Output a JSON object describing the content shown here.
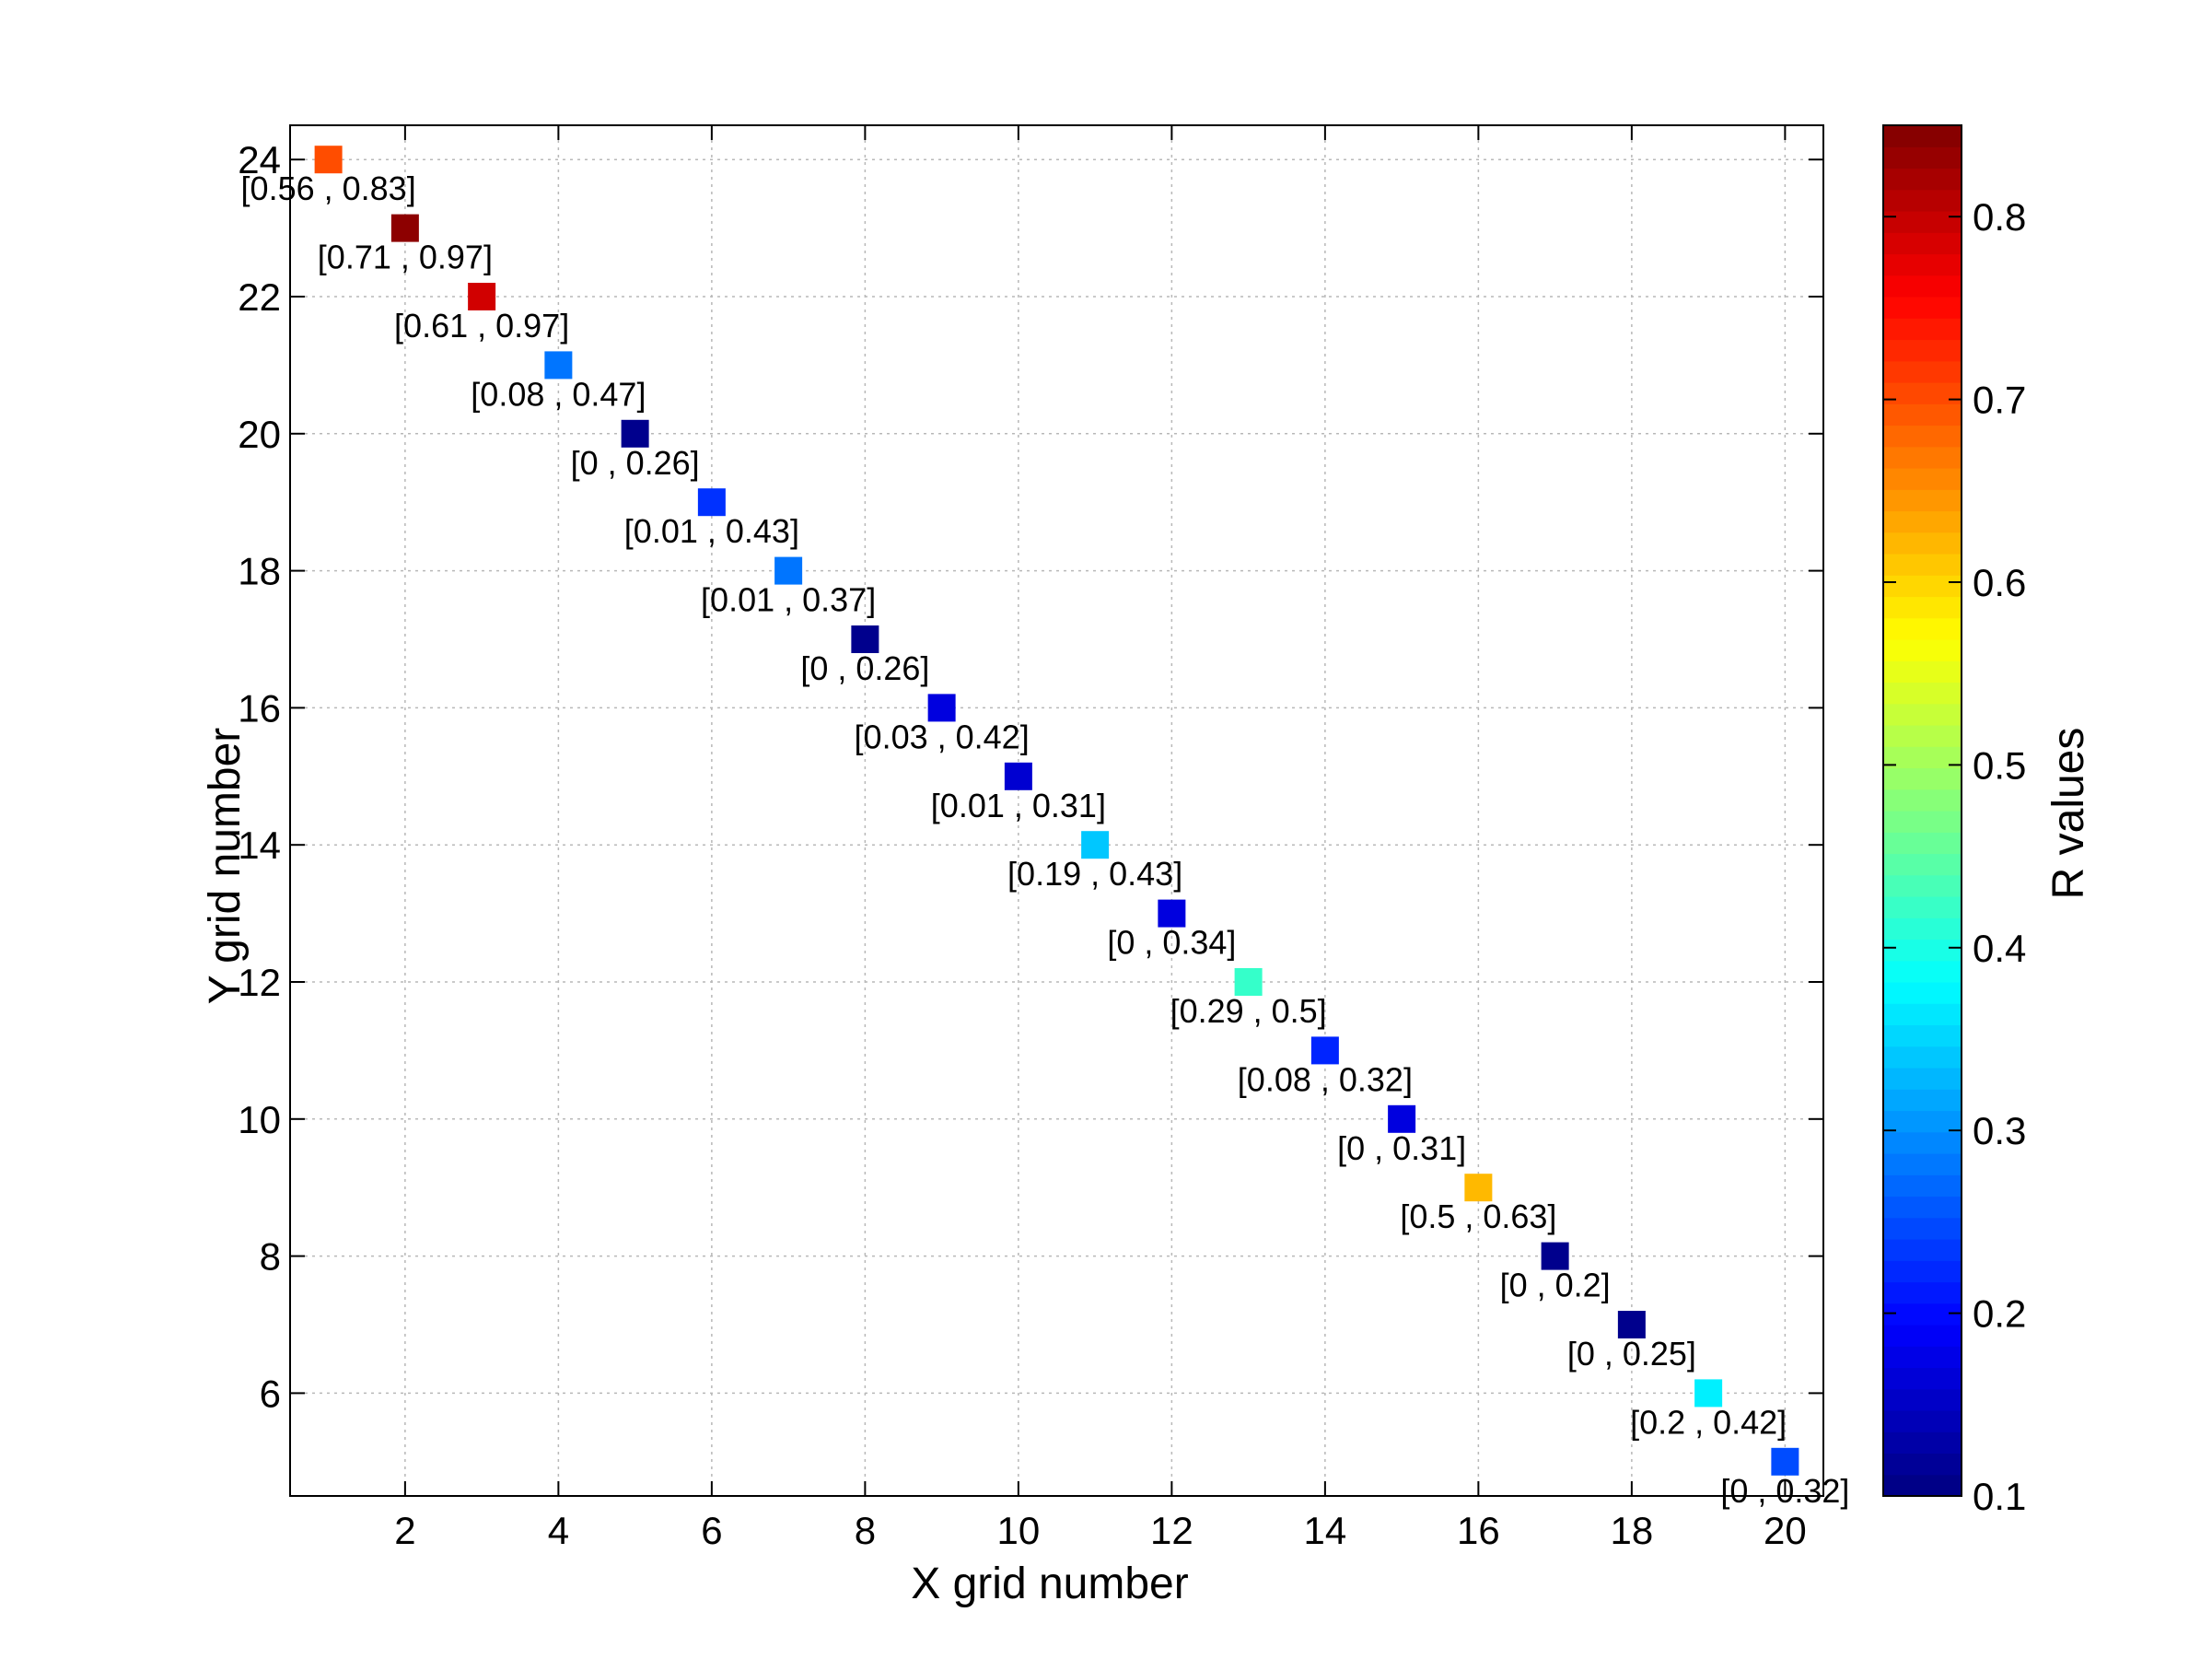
{
  "chart_data": {
    "type": "scatter",
    "xlabel": "X grid number",
    "ylabel": "Y grid number",
    "colorbar_label": "R values",
    "xlim": [
      0.5,
      20.5
    ],
    "ylim": [
      4.5,
      24.5
    ],
    "xticks": [
      2,
      4,
      6,
      8,
      10,
      12,
      14,
      16,
      18,
      20
    ],
    "yticks": [
      6,
      8,
      10,
      12,
      14,
      16,
      18,
      20,
      22,
      24
    ],
    "color_range": [
      0.1,
      0.85
    ],
    "colorbar_ticks": [
      0.1,
      0.2,
      0.3,
      0.4,
      0.5,
      0.6,
      0.7,
      0.8
    ],
    "colormap": "jet",
    "grid": true,
    "points": [
      {
        "x": 1,
        "y": 24,
        "r": 0.7,
        "label": "[0.56 , 0.83]"
      },
      {
        "x": 2,
        "y": 23,
        "r": 0.84,
        "label": "[0.71 , 0.97]"
      },
      {
        "x": 3,
        "y": 22,
        "r": 0.79,
        "label": "[0.61 , 0.97]"
      },
      {
        "x": 4,
        "y": 21,
        "r": 0.28,
        "label": "[0.08 , 0.47]"
      },
      {
        "x": 5,
        "y": 20,
        "r": 0.11,
        "label": "[0 , 0.26]"
      },
      {
        "x": 6,
        "y": 19,
        "r": 0.23,
        "label": "[0.01 , 0.43]"
      },
      {
        "x": 7,
        "y": 18,
        "r": 0.28,
        "label": "[0.01 , 0.37]"
      },
      {
        "x": 8,
        "y": 17,
        "r": 0.11,
        "label": "[0 , 0.26]"
      },
      {
        "x": 9,
        "y": 16,
        "r": 0.17,
        "label": "[0.03 , 0.42]"
      },
      {
        "x": 10,
        "y": 15,
        "r": 0.16,
        "label": "[0.01 , 0.31]"
      },
      {
        "x": 11,
        "y": 14,
        "r": 0.34,
        "label": "[0.19 , 0.43]"
      },
      {
        "x": 12,
        "y": 13,
        "r": 0.17,
        "label": "[0 , 0.34]"
      },
      {
        "x": 13,
        "y": 12,
        "r": 0.42,
        "label": "[0.29 , 0.5]"
      },
      {
        "x": 14,
        "y": 11,
        "r": 0.22,
        "label": "[0.08 , 0.32]"
      },
      {
        "x": 15,
        "y": 10,
        "r": 0.17,
        "label": "[0 , 0.31]"
      },
      {
        "x": 16,
        "y": 9,
        "r": 0.62,
        "label": "[0.5 , 0.63]"
      },
      {
        "x": 17,
        "y": 8,
        "r": 0.11,
        "label": "[0 , 0.2]"
      },
      {
        "x": 18,
        "y": 7,
        "r": 0.11,
        "label": "[0 , 0.25]"
      },
      {
        "x": 19,
        "y": 6,
        "r": 0.37,
        "label": "[0.2 , 0.42]"
      },
      {
        "x": 20,
        "y": 5,
        "r": 0.25,
        "label": "[0 , 0.32]"
      }
    ]
  }
}
